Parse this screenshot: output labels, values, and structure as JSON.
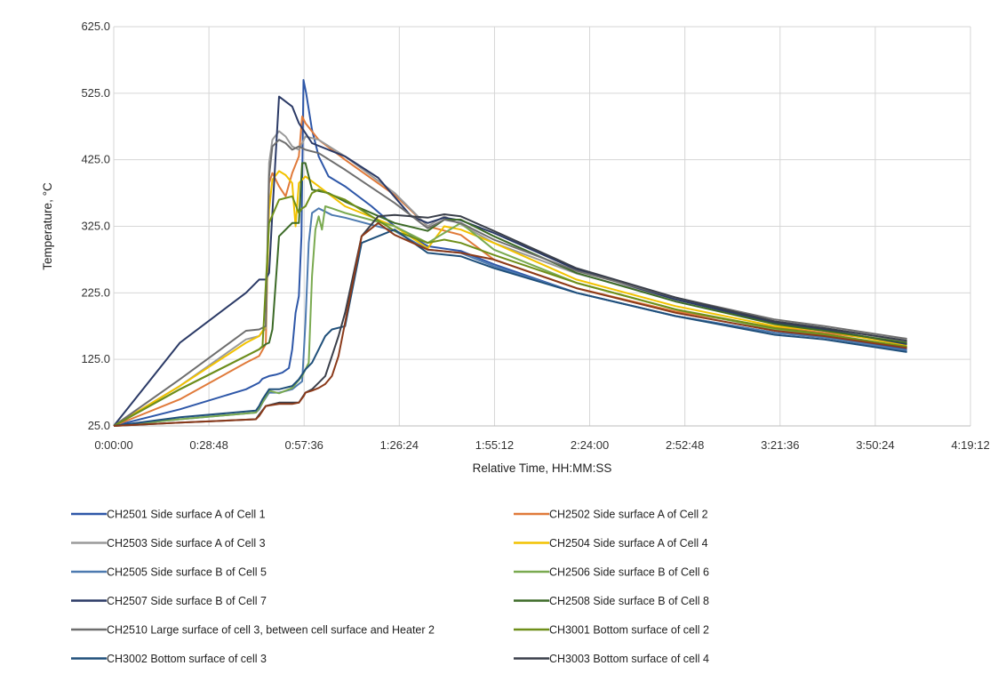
{
  "chart_data": {
    "type": "line",
    "xlabel": "Relative Time, HH:MM:SS",
    "ylabel": "Temperature, °C",
    "ylim": [
      25,
      625
    ],
    "yticks": [
      25,
      125,
      225,
      325,
      425,
      525,
      625
    ],
    "ytick_labels": [
      "25.0",
      "125.0",
      "225.0",
      "325.0",
      "425.0",
      "525.0",
      "625.0"
    ],
    "xlim_minutes": [
      0,
      259.2
    ],
    "xticks_minutes": [
      0,
      28.8,
      57.6,
      86.4,
      115.2,
      144,
      172.8,
      201.6,
      230.4,
      259.2
    ],
    "xtick_labels": [
      "0:00:00",
      "0:28:48",
      "0:57:36",
      "1:26:24",
      "1:55:12",
      "2:24:00",
      "2:52:48",
      "3:21:36",
      "3:50:24",
      "4:19:12"
    ],
    "grid": true,
    "legend_position": "bottom",
    "series": [
      {
        "name": "CH2501 Side surface A of Cell 1",
        "color": "#2e57a8",
        "x": [
          0,
          20,
          40,
          44,
          45,
          47,
          49,
          51,
          53,
          54,
          55,
          56,
          56.8,
          57.4,
          58.2,
          60,
          62,
          65,
          70,
          78,
          85,
          95,
          105,
          115,
          140,
          170,
          200,
          215,
          240
        ],
        "y": [
          25,
          50,
          80,
          90,
          96,
          100,
          102,
          105,
          112,
          140,
          195,
          220,
          310,
          545,
          525,
          470,
          430,
          400,
          385,
          355,
          325,
          295,
          288,
          268,
          225,
          190,
          165,
          158,
          140
        ]
      },
      {
        "name": "CH2502 Side surface A of Cell 2",
        "color": "#e07a3a",
        "x": [
          0,
          20,
          40,
          44,
          46,
          47,
          48,
          50,
          52,
          54,
          56,
          57,
          58,
          62,
          70,
          85,
          95,
          105,
          115,
          140,
          170,
          200,
          215,
          240
        ],
        "y": [
          25,
          65,
          120,
          130,
          148,
          390,
          405,
          385,
          370,
          405,
          430,
          490,
          480,
          455,
          425,
          372,
          325,
          312,
          275,
          232,
          197,
          173,
          165,
          150
        ]
      },
      {
        "name": "CH2503 Side surface A of Cell 3",
        "color": "#9a9a9a",
        "x": [
          0,
          20,
          40,
          44,
          46,
          47,
          48,
          50,
          52,
          54,
          56,
          58,
          62,
          70,
          85,
          95,
          100,
          105,
          115,
          140,
          170,
          200,
          215,
          240
        ],
        "y": [
          25,
          85,
          155,
          160,
          172,
          420,
          455,
          468,
          460,
          445,
          440,
          460,
          455,
          430,
          375,
          325,
          340,
          328,
          300,
          254,
          215,
          182,
          172,
          152
        ]
      },
      {
        "name": "CH2504 Side surface A of Cell 4",
        "color": "#f2c200",
        "x": [
          0,
          20,
          40,
          44,
          46,
          47,
          48,
          50,
          52,
          54,
          55,
          56,
          58,
          62,
          70,
          85,
          95,
          100,
          105,
          115,
          140,
          170,
          200,
          215,
          240
        ],
        "y": [
          25,
          85,
          150,
          160,
          175,
          350,
          395,
          408,
          402,
          390,
          325,
          390,
          400,
          385,
          355,
          325,
          292,
          325,
          320,
          300,
          245,
          205,
          175,
          168,
          146
        ]
      },
      {
        "name": "CH2505 Side surface B of Cell 5",
        "color": "#4d7ab0",
        "x": [
          0,
          20,
          43,
          44,
          45,
          47,
          50,
          54,
          57,
          58,
          59,
          60,
          62,
          66,
          70,
          85,
          95,
          105,
          115,
          140,
          170,
          200,
          215,
          240
        ],
        "y": [
          25,
          35,
          45,
          50,
          60,
          75,
          75,
          80,
          92,
          180,
          300,
          345,
          352,
          342,
          338,
          318,
          290,
          285,
          265,
          225,
          190,
          165,
          158,
          138
        ]
      },
      {
        "name": "CH2506 Side surface B of Cell 6",
        "color": "#7aaa50",
        "x": [
          0,
          20,
          43,
          44,
          45,
          47,
          50,
          54,
          57,
          59,
          60,
          61,
          62,
          63,
          64,
          66,
          70,
          85,
          95,
          105,
          115,
          140,
          170,
          200,
          215,
          240
        ],
        "y": [
          25,
          35,
          45,
          52,
          60,
          78,
          74,
          82,
          100,
          120,
          250,
          320,
          340,
          320,
          355,
          352,
          345,
          325,
          300,
          330,
          290,
          240,
          200,
          170,
          162,
          142
        ]
      },
      {
        "name": "CH2507 Side surface B of Cell 7",
        "color": "#2b3a66",
        "x": [
          0,
          20,
          40,
          44,
          46,
          47,
          48,
          50,
          54,
          56,
          58,
          60,
          65,
          70,
          80,
          90,
          95,
          100,
          105,
          115,
          140,
          170,
          200,
          215,
          240
        ],
        "y": [
          25,
          150,
          225,
          245,
          245,
          255,
          345,
          520,
          505,
          480,
          465,
          450,
          440,
          430,
          398,
          340,
          330,
          338,
          334,
          315,
          260,
          215,
          180,
          170,
          148
        ]
      },
      {
        "name": "CH2508 Side surface B of Cell 8",
        "color": "#3d6b28",
        "x": [
          0,
          20,
          40,
          44,
          46,
          47,
          48,
          50,
          54,
          56,
          57,
          58,
          60,
          65,
          70,
          85,
          95,
          100,
          105,
          115,
          140,
          170,
          200,
          215,
          240
        ],
        "y": [
          25,
          80,
          130,
          140,
          148,
          150,
          170,
          310,
          330,
          330,
          420,
          420,
          380,
          375,
          362,
          330,
          318,
          335,
          335,
          310,
          255,
          212,
          178,
          168,
          150
        ]
      },
      {
        "name": "CH2510 Large surface of cell 3, between cell surface and Heater 2",
        "color": "#6e6e6e",
        "x": [
          0,
          20,
          40,
          44,
          46,
          47,
          48,
          50,
          52,
          54,
          56,
          58,
          62,
          70,
          85,
          95,
          100,
          105,
          115,
          140,
          170,
          200,
          215,
          240
        ],
        "y": [
          25,
          95,
          168,
          170,
          175,
          400,
          445,
          455,
          450,
          440,
          445,
          440,
          435,
          410,
          360,
          322,
          335,
          330,
          305,
          258,
          218,
          185,
          175,
          156
        ]
      },
      {
        "name": "CH3001 Bottom surface of cell 2",
        "color": "#6f8f1a",
        "x": [
          0,
          20,
          40,
          44,
          45,
          47,
          50,
          54,
          56,
          57,
          58,
          60,
          62,
          66,
          70,
          85,
          95,
          100,
          105,
          115,
          140,
          170,
          200,
          215,
          240
        ],
        "y": [
          25,
          80,
          130,
          140,
          145,
          330,
          365,
          370,
          345,
          352,
          355,
          375,
          380,
          372,
          365,
          318,
          300,
          305,
          300,
          282,
          240,
          200,
          172,
          163,
          144
        ]
      },
      {
        "name": "CH3002 Bottom surface of cell 3",
        "color": "#1f4f7a",
        "x": [
          0,
          20,
          43,
          44,
          45,
          47,
          50,
          54,
          56,
          58,
          60,
          62,
          64,
          66,
          70,
          75,
          85,
          95,
          105,
          115,
          140,
          170,
          200,
          215,
          240
        ],
        "y": [
          25,
          38,
          48,
          55,
          65,
          80,
          80,
          85,
          95,
          110,
          120,
          140,
          160,
          170,
          175,
          300,
          320,
          285,
          280,
          262,
          225,
          190,
          162,
          155,
          136
        ]
      },
      {
        "name": "CH3003 Bottom surface of cell 4",
        "color": "#3a3f4a",
        "x": [
          0,
          20,
          43,
          44,
          46,
          50,
          54,
          56,
          58,
          60,
          62,
          64,
          66,
          68,
          70,
          75,
          80,
          85,
          95,
          100,
          105,
          115,
          140,
          170,
          200,
          215,
          240
        ],
        "y": [
          25,
          30,
          35,
          42,
          55,
          60,
          60,
          60,
          75,
          80,
          90,
          100,
          130,
          160,
          195,
          310,
          340,
          342,
          338,
          343,
          340,
          318,
          262,
          218,
          182,
          172,
          153
        ]
      },
      {
        "name": "",
        "color": "#8b3a1a",
        "x": [
          0,
          20,
          43,
          44,
          46,
          50,
          54,
          56,
          57.5,
          58,
          60,
          62,
          64,
          66,
          68,
          70,
          75,
          80,
          85,
          95,
          105,
          115,
          140,
          170,
          200,
          215,
          240
        ],
        "y": [
          25,
          30,
          35,
          40,
          55,
          58,
          58,
          60,
          70,
          75,
          78,
          82,
          88,
          100,
          130,
          180,
          310,
          330,
          312,
          290,
          285,
          275,
          232,
          195,
          168,
          160,
          142
        ]
      }
    ]
  }
}
